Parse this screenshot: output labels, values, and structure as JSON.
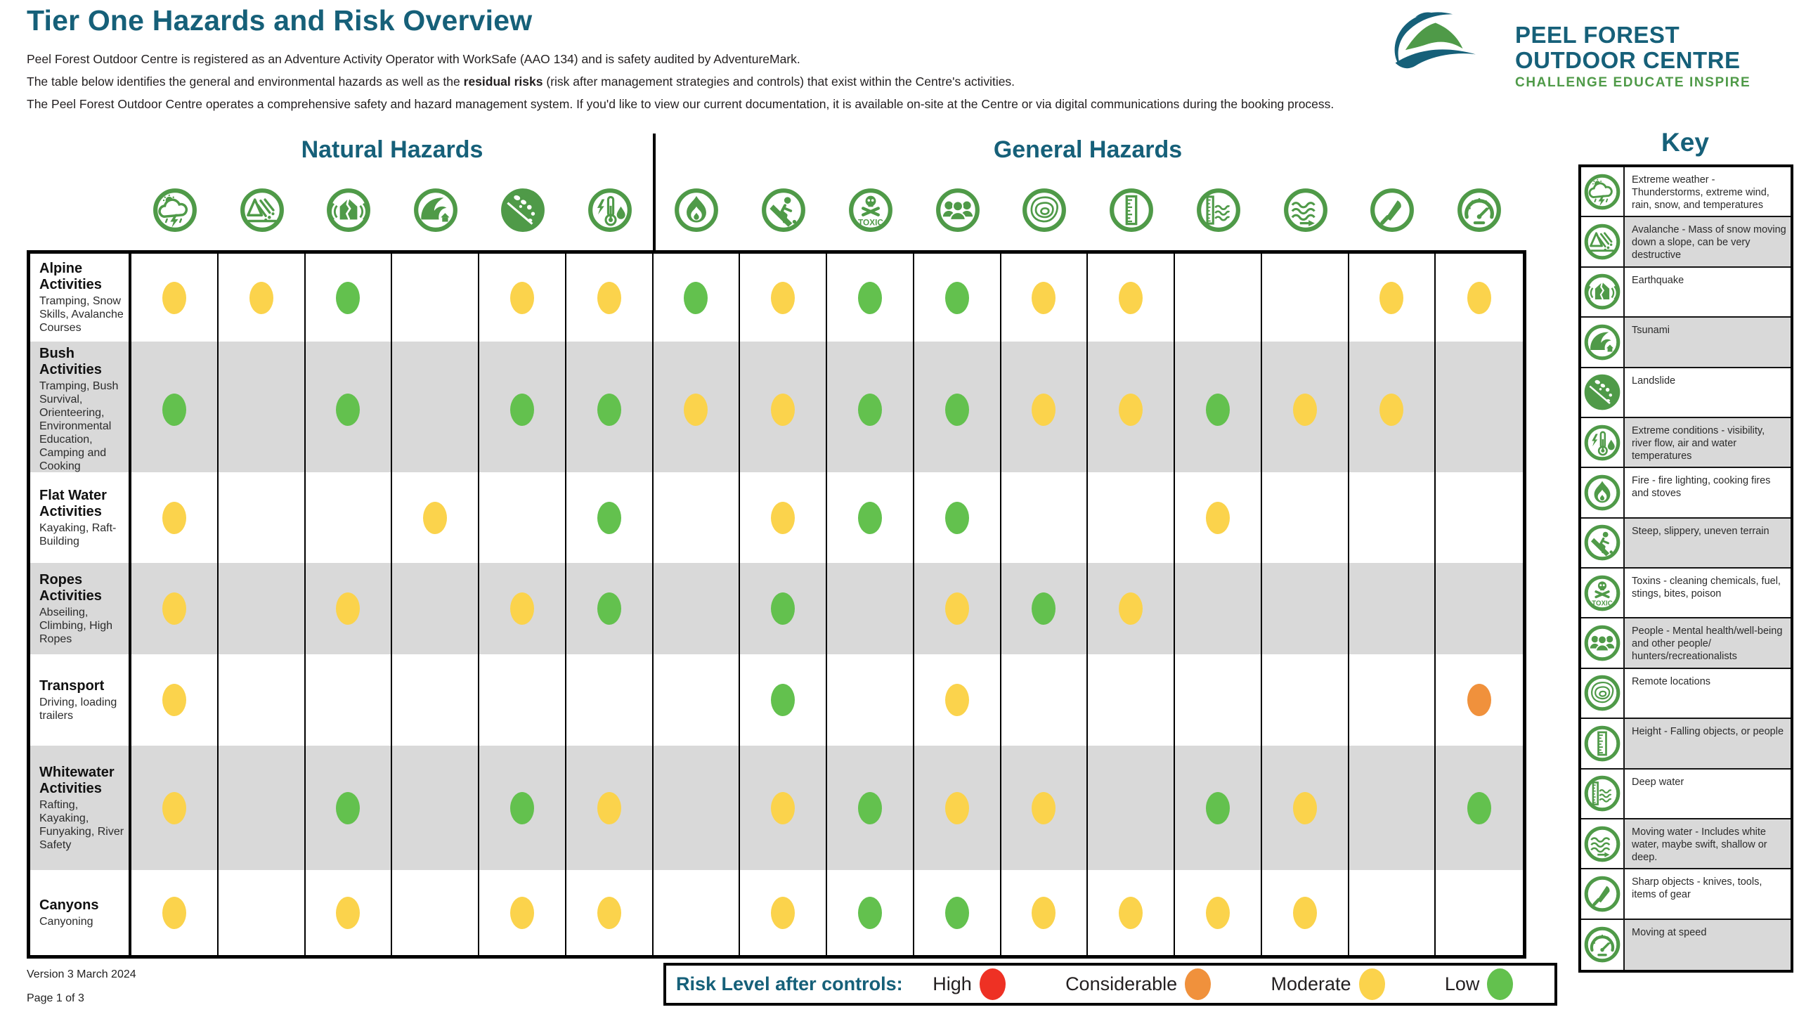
{
  "document": {
    "title": "Tier One Hazards and Risk Overview",
    "intro": [
      {
        "text": "Peel Forest Outdoor Centre is registered as an Adventure Activity Operator with WorkSafe (AAO 134) and is safety audited by AdventureMark."
      },
      {
        "text_pre": "The table below identifies the general and environmental hazards as well as the ",
        "text_bold": "residual risks",
        "text_post": " (risk after management strategies and controls) that exist within the Centre's activities."
      },
      {
        "text": "The Peel Forest Outdoor Centre operates a comprehensive safety and hazard management system. If you'd like to view our current documentation, it is available on-site at the Centre or via digital communications during the booking process."
      }
    ],
    "version": "Version 3 March 2024",
    "page": "Page 1 of 3"
  },
  "logo": {
    "line1": "PEEL FOREST",
    "line2": "OUTDOOR CENTRE",
    "tagline": "CHALLENGE EDUCATE INSPIRE"
  },
  "table": {
    "group_headers": [
      {
        "label": "Natural Hazards",
        "columns": 6
      },
      {
        "label": "General Hazards",
        "columns": 10
      }
    ],
    "columns": [
      "extreme-weather-icon",
      "avalanche-icon",
      "earthquake-icon",
      "tsunami-icon",
      "landslide-icon",
      "extreme-conditions-icon",
      "fire-icon",
      "steep-slippery-icon",
      "toxins-icon",
      "people-icon",
      "remote-locations-icon",
      "height-icon",
      "deep-water-icon",
      "moving-water-icon",
      "sharp-objects-icon",
      "moving-at-speed-icon"
    ],
    "rows": [
      {
        "title": "Alpine Activities",
        "subtitle": "Tramping, Snow Skills, Avalanche Courses",
        "cells": [
          "moderate",
          "moderate",
          "low",
          "",
          "moderate",
          "moderate",
          "low",
          "moderate",
          "low",
          "low",
          "moderate",
          "moderate",
          "",
          "",
          "moderate",
          "moderate"
        ]
      },
      {
        "title": "Bush Activities",
        "subtitle": "Tramping, Bush Survival, Orienteering, Environmental Education, Camping and Cooking",
        "cells": [
          "low",
          "",
          "low",
          "",
          "low",
          "low",
          "moderate",
          "moderate",
          "low",
          "low",
          "moderate",
          "moderate",
          "low",
          "moderate",
          "moderate",
          ""
        ]
      },
      {
        "title": "Flat Water Activities",
        "subtitle": "Kayaking, Raft-Building",
        "cells": [
          "moderate",
          "",
          "",
          "moderate",
          "",
          "low",
          "",
          "moderate",
          "low",
          "low",
          "",
          "",
          "moderate",
          "",
          "",
          ""
        ]
      },
      {
        "title": "Ropes Activities",
        "subtitle": "Abseiling, Climbing, High Ropes",
        "cells": [
          "moderate",
          "",
          "moderate",
          "",
          "moderate",
          "low",
          "",
          "low",
          "",
          "moderate",
          "low",
          "moderate",
          "",
          "",
          "",
          ""
        ]
      },
      {
        "title": "Transport",
        "subtitle": "Driving, loading trailers",
        "cells": [
          "moderate",
          "",
          "",
          "",
          "",
          "",
          "",
          "low",
          "",
          "moderate",
          "",
          "",
          "",
          "",
          "",
          "considerable"
        ]
      },
      {
        "title": "Whitewater Activities",
        "subtitle": "Rafting, Kayaking, Funyaking, River Safety",
        "cells": [
          "moderate",
          "",
          "low",
          "",
          "low",
          "moderate",
          "",
          "moderate",
          "low",
          "moderate",
          "moderate",
          "",
          "low",
          "moderate",
          "",
          "low"
        ]
      },
      {
        "title": "Canyons",
        "subtitle": "Canyoning",
        "cells": [
          "moderate",
          "",
          "moderate",
          "",
          "moderate",
          "moderate",
          "",
          "moderate",
          "low",
          "low",
          "moderate",
          "moderate",
          "moderate",
          "moderate",
          "",
          ""
        ]
      }
    ]
  },
  "risk_legend": {
    "label": "Risk Level after controls:",
    "levels": [
      {
        "name": "High",
        "color": "#ee3124"
      },
      {
        "name": "Considerable",
        "color": "#f0913c"
      },
      {
        "name": "Moderate",
        "color": "#fbd34c"
      },
      {
        "name": "Low",
        "color": "#63c14e"
      }
    ]
  },
  "key": {
    "title": "Key",
    "items": [
      {
        "icon": "extreme-weather-icon",
        "label": "Extreme weather - Thunderstorms, extreme wind, rain, snow, and temperatures"
      },
      {
        "icon": "avalanche-icon",
        "label": "Avalanche - Mass of snow moving down a slope, can be very destructive"
      },
      {
        "icon": "earthquake-icon",
        "label": "Earthquake"
      },
      {
        "icon": "tsunami-icon",
        "label": "Tsunami"
      },
      {
        "icon": "landslide-icon",
        "label": "Landslide"
      },
      {
        "icon": "extreme-conditions-icon",
        "label": "Extreme conditions - visibility, river flow, air and water temperatures"
      },
      {
        "icon": "fire-icon",
        "label": "Fire - fire lighting, cooking fires and stoves"
      },
      {
        "icon": "steep-slippery-icon",
        "label": "Steep, slippery, uneven terrain"
      },
      {
        "icon": "toxins-icon",
        "label": "Toxins - cleaning chemicals, fuel, stings, bites, poison"
      },
      {
        "icon": "people-icon",
        "label": "People - Mental health/well-being and other people/ hunters/recreationalists"
      },
      {
        "icon": "remote-locations-icon",
        "label": "Remote locations"
      },
      {
        "icon": "height-icon",
        "label": "Height - Falling objects, or people"
      },
      {
        "icon": "deep-water-icon",
        "label": "Deep water"
      },
      {
        "icon": "moving-water-icon",
        "label": "Moving water - Includes white water, maybe swift, shallow or deep."
      },
      {
        "icon": "sharp-objects-icon",
        "label": "Sharp objects - knives, tools, items of gear"
      },
      {
        "icon": "moving-at-speed-icon",
        "label": "Moving at speed"
      }
    ]
  },
  "colors": {
    "accent_teal": "#166079",
    "hazard_green": "#4f9a48",
    "stripe_gray": "#d9d9d9",
    "high": "#ee3124",
    "considerable": "#f0913c",
    "moderate": "#fbd34c",
    "low": "#63c14e"
  }
}
